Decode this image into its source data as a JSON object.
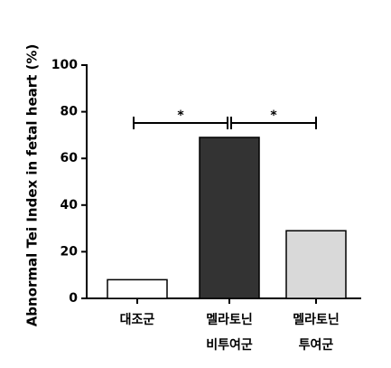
{
  "chart_data": {
    "type": "bar",
    "y_label": "Abnormal Tei Index in fetal heart (%)",
    "categories": [
      [
        "대조군"
      ],
      [
        "멜라토닌",
        "비투여군"
      ],
      [
        "멜라토닌",
        "투여군"
      ]
    ],
    "values": [
      8,
      69,
      29
    ],
    "colors": [
      "#ffffff",
      "#333333",
      "#d9d9d9"
    ],
    "ylim": [
      0,
      100
    ],
    "yticks": [
      0,
      20,
      40,
      60,
      80,
      100
    ],
    "annotations": [
      "*",
      "*"
    ]
  }
}
